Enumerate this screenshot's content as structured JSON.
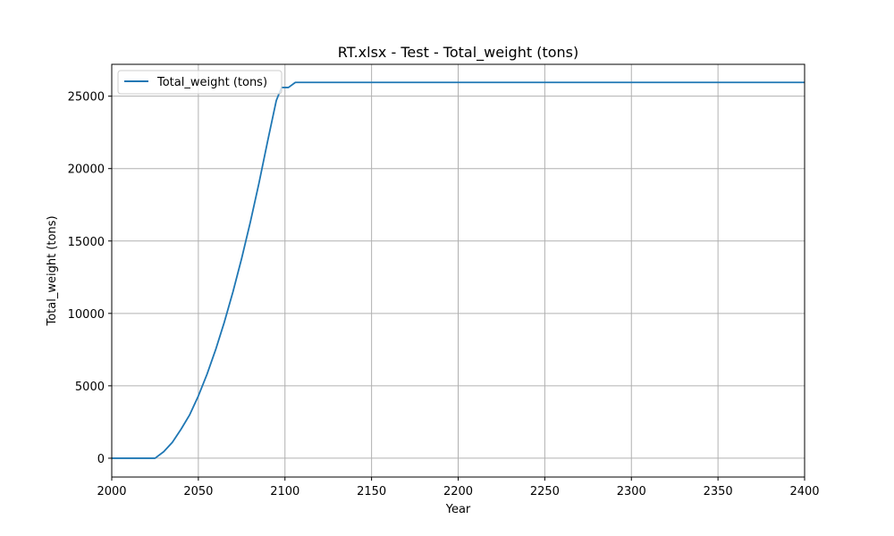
{
  "chart_data": {
    "type": "line",
    "title": "RT.xlsx - Test - Total_weight (tons)",
    "xlabel": "Year",
    "ylabel": "Total_weight (tons)",
    "xlim": [
      2000,
      2400
    ],
    "ylim": [
      -1300,
      27200
    ],
    "xticks": [
      2000,
      2050,
      2100,
      2150,
      2200,
      2250,
      2300,
      2350,
      2400
    ],
    "yticks": [
      0,
      5000,
      10000,
      15000,
      20000,
      25000
    ],
    "grid": true,
    "legend_position": "upper-left",
    "series": [
      {
        "name": "Total_weight (tons)",
        "color": "#1f77b4",
        "x": [
          2000,
          2025,
          2030,
          2035,
          2040,
          2045,
          2050,
          2055,
          2060,
          2065,
          2070,
          2075,
          2080,
          2085,
          2090,
          2095,
          2098,
          2102,
          2106,
          2400
        ],
        "y": [
          0,
          0,
          450,
          1100,
          2000,
          3000,
          4300,
          5800,
          7500,
          9400,
          11500,
          13800,
          16300,
          19000,
          21900,
          24700,
          25600,
          25600,
          25950,
          25950
        ]
      }
    ]
  }
}
